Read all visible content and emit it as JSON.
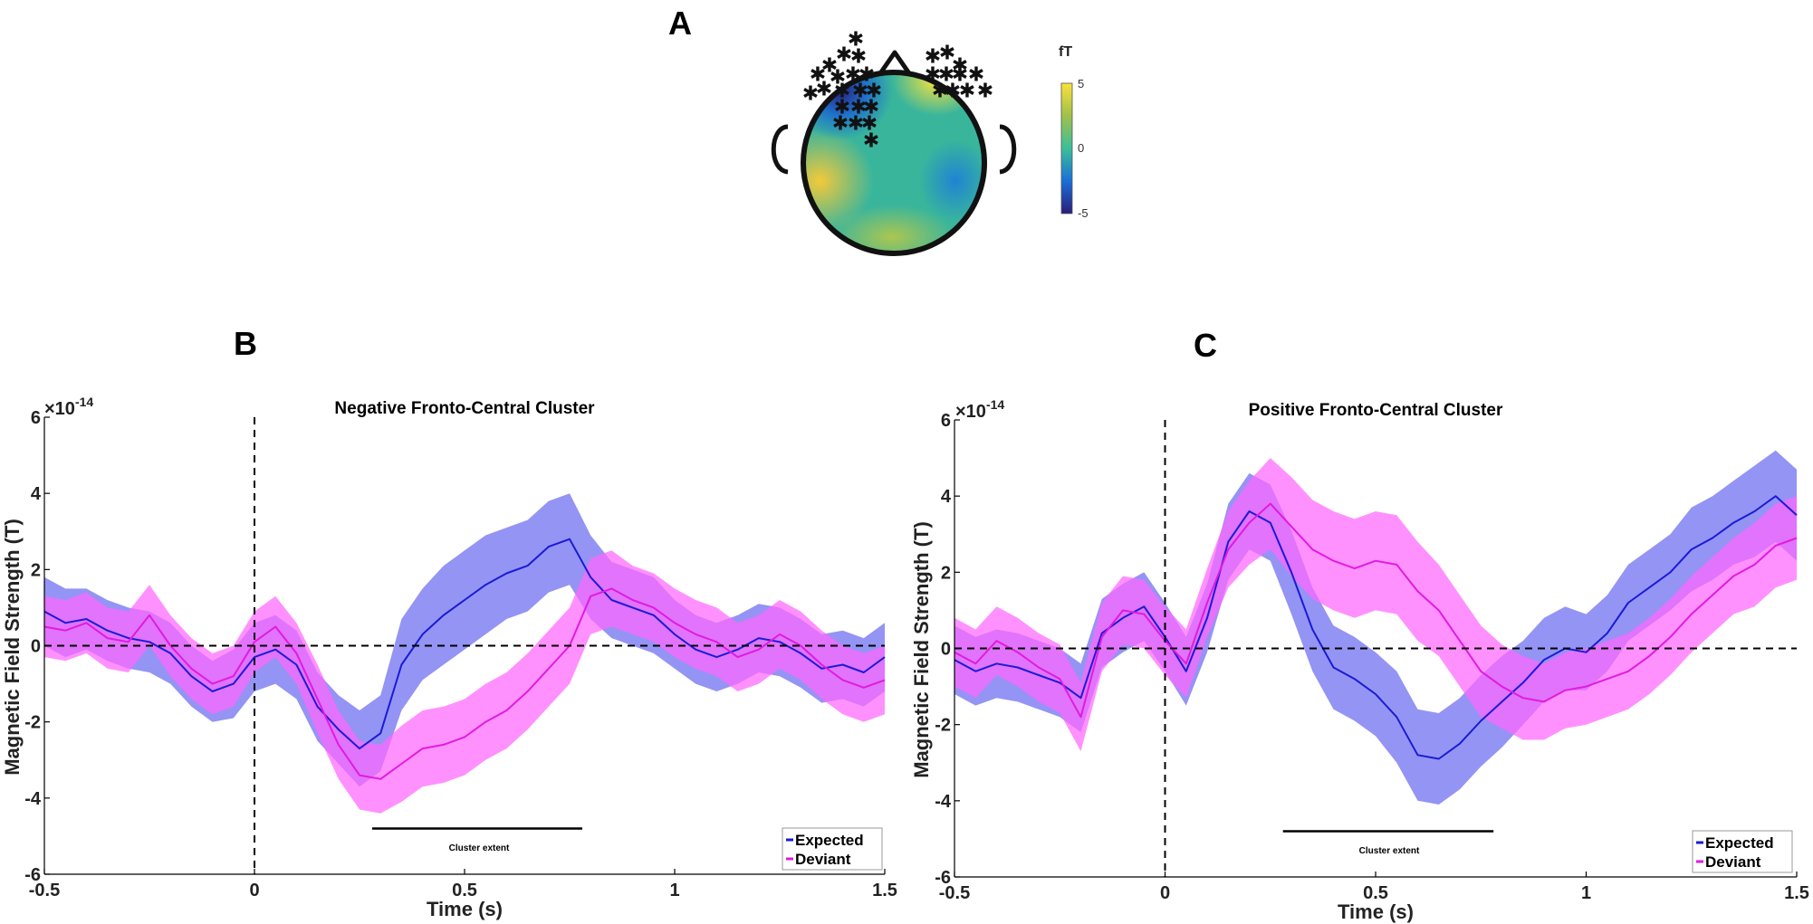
{
  "figure": {
    "panel_labels": {
      "a": "A",
      "b": "B",
      "c": "C"
    }
  },
  "colors": {
    "expected_line": "#1b1bd6",
    "expected_band": "#6b6bf0",
    "deviant_line": "#e01be0",
    "deviant_band": "#ff66ff"
  },
  "topomap": {
    "colorbar_unit": "fT",
    "colorbar_ticks": [
      "5",
      "0",
      "-5"
    ],
    "marker_symbol": "✱",
    "colormap": [
      "#2b1c7a",
      "#1a6fd8",
      "#21a3c8",
      "#3bbf9a",
      "#a0c04a",
      "#f0c83a",
      "#fbe13a"
    ]
  },
  "chart_data": [
    {
      "panel": "B",
      "type": "line",
      "title": "Negative Fronto-Central Cluster",
      "xlabel": "Time (s)",
      "ylabel": "Magnetic Field Strength (T)",
      "yscale_label": "×10",
      "yscale_exponent": "-14",
      "xlim": [
        -0.5,
        1.5
      ],
      "ylim": [
        -6,
        6
      ],
      "xticks": [
        -0.5,
        0,
        0.5,
        1,
        1.5
      ],
      "xtick_labels": [
        "-0.5",
        "0",
        "0.5",
        "1",
        "1.5"
      ],
      "yticks": [
        -6,
        -4,
        -2,
        0,
        2,
        4,
        6
      ],
      "ytick_labels": [
        "-6",
        "-4",
        "-2",
        "0",
        "2",
        "4",
        "6"
      ],
      "legend": [
        "Expected",
        "Deviant"
      ],
      "legend_position": "bottom-right",
      "cluster_extent_label": "Cluster extent",
      "cluster_extent": [
        0.28,
        0.78
      ],
      "cluster_y": -4.8,
      "x": [
        -0.5,
        -0.45,
        -0.4,
        -0.35,
        -0.3,
        -0.25,
        -0.2,
        -0.15,
        -0.1,
        -0.05,
        0,
        0.05,
        0.1,
        0.15,
        0.2,
        0.25,
        0.3,
        0.35,
        0.4,
        0.45,
        0.5,
        0.55,
        0.6,
        0.65,
        0.7,
        0.75,
        0.8,
        0.85,
        0.9,
        0.95,
        1,
        1.05,
        1.1,
        1.15,
        1.2,
        1.25,
        1.3,
        1.35,
        1.4,
        1.45,
        1.5
      ],
      "series": [
        {
          "name": "Expected",
          "values": [
            0.9,
            0.6,
            0.7,
            0.4,
            0.2,
            0.1,
            -0.2,
            -0.8,
            -1.2,
            -1.0,
            -0.3,
            -0.1,
            -0.5,
            -1.6,
            -2.2,
            -2.7,
            -2.3,
            -0.5,
            0.3,
            0.8,
            1.2,
            1.6,
            1.9,
            2.1,
            2.6,
            2.8,
            1.8,
            1.2,
            1.0,
            0.8,
            0.3,
            -0.1,
            -0.3,
            -0.1,
            0.2,
            0.1,
            -0.2,
            -0.6,
            -0.5,
            -0.7,
            -0.3
          ],
          "error": [
            0.9,
            0.9,
            0.8,
            0.8,
            0.8,
            0.8,
            0.8,
            0.8,
            0.8,
            0.9,
            0.9,
            0.9,
            0.9,
            0.9,
            0.9,
            1.0,
            1.0,
            1.2,
            1.2,
            1.3,
            1.3,
            1.3,
            1.2,
            1.2,
            1.2,
            1.2,
            1.1,
            1.0,
            1.0,
            1.0,
            0.9,
            0.9,
            0.9,
            0.9,
            0.9,
            0.9,
            0.9,
            0.9,
            0.9,
            0.9,
            0.9
          ]
        },
        {
          "name": "Deviant",
          "values": [
            0.5,
            0.4,
            0.6,
            0.2,
            0.1,
            0.8,
            0.0,
            -0.6,
            -1.0,
            -0.8,
            0.1,
            0.5,
            -0.2,
            -1.4,
            -2.6,
            -3.4,
            -3.5,
            -3.1,
            -2.7,
            -2.6,
            -2.4,
            -2.0,
            -1.7,
            -1.2,
            -0.6,
            0.0,
            1.3,
            1.5,
            1.2,
            1.0,
            0.6,
            0.3,
            0.1,
            -0.3,
            -0.1,
            0.3,
            0.0,
            -0.5,
            -0.9,
            -1.1,
            -0.9
          ],
          "error": [
            0.8,
            0.8,
            0.8,
            0.8,
            0.8,
            0.8,
            0.8,
            0.8,
            0.8,
            0.8,
            0.8,
            0.8,
            0.8,
            0.9,
            0.9,
            0.9,
            0.9,
            1.0,
            1.0,
            1.0,
            1.0,
            1.0,
            1.0,
            1.0,
            1.0,
            1.0,
            1.0,
            1.0,
            0.9,
            0.9,
            0.9,
            0.9,
            0.9,
            0.9,
            0.9,
            0.9,
            0.9,
            0.9,
            0.9,
            0.9,
            0.9
          ]
        }
      ]
    },
    {
      "panel": "C",
      "type": "line",
      "title": "Positive Fronto-Central Cluster",
      "xlabel": "Time (s)",
      "ylabel": "Magnetic Field Strength (T)",
      "yscale_label": "×10",
      "yscale_exponent": "-14",
      "xlim": [
        -0.5,
        1.5
      ],
      "ylim": [
        -6,
        6
      ],
      "xticks": [
        -0.5,
        0,
        0.5,
        1,
        1.5
      ],
      "xtick_labels": [
        "-0.5",
        "0",
        "0.5",
        "1",
        "1.5"
      ],
      "yticks": [
        -6,
        -4,
        -2,
        0,
        2,
        4,
        6
      ],
      "ytick_labels": [
        "-6",
        "-4",
        "-2",
        "0",
        "2",
        "4",
        "6"
      ],
      "legend": [
        "Expected",
        "Deviant"
      ],
      "legend_position": "bottom-right",
      "cluster_extent_label": "Cluster extent",
      "cluster_extent": [
        0.28,
        0.78
      ],
      "cluster_y": -4.8,
      "x": [
        -0.5,
        -0.45,
        -0.4,
        -0.35,
        -0.3,
        -0.25,
        -0.2,
        -0.15,
        -0.1,
        -0.05,
        0,
        0.05,
        0.1,
        0.15,
        0.2,
        0.25,
        0.3,
        0.35,
        0.4,
        0.45,
        0.5,
        0.55,
        0.6,
        0.65,
        0.7,
        0.75,
        0.8,
        0.85,
        0.9,
        0.95,
        1,
        1.05,
        1.1,
        1.15,
        1.2,
        1.25,
        1.3,
        1.35,
        1.4,
        1.45,
        1.5
      ],
      "series": [
        {
          "name": "Expected",
          "values": [
            -0.3,
            -0.6,
            -0.4,
            -0.5,
            -0.7,
            -0.9,
            -1.3,
            0.4,
            0.8,
            1.1,
            0.3,
            -0.6,
            0.8,
            2.8,
            3.6,
            3.3,
            2.0,
            0.5,
            -0.5,
            -0.8,
            -1.2,
            -1.8,
            -2.8,
            -2.9,
            -2.5,
            -1.9,
            -1.4,
            -0.9,
            -0.3,
            0.0,
            -0.1,
            0.4,
            1.2,
            1.6,
            2.0,
            2.6,
            2.9,
            3.3,
            3.6,
            4.0,
            3.5
          ],
          "error": [
            0.9,
            0.9,
            0.9,
            0.9,
            0.9,
            0.9,
            0.9,
            0.9,
            0.9,
            0.9,
            0.9,
            0.9,
            0.9,
            1.0,
            1.0,
            1.0,
            1.1,
            1.1,
            1.1,
            1.1,
            1.1,
            1.2,
            1.2,
            1.2,
            1.2,
            1.2,
            1.2,
            1.1,
            1.1,
            1.1,
            1.0,
            1.0,
            1.0,
            1.0,
            1.0,
            1.1,
            1.1,
            1.1,
            1.2,
            1.2,
            1.2
          ]
        },
        {
          "name": "Deviant",
          "values": [
            -0.1,
            -0.4,
            0.2,
            -0.1,
            -0.5,
            -0.8,
            -1.8,
            0.3,
            1.0,
            0.9,
            0.2,
            -0.4,
            1.2,
            2.6,
            3.3,
            3.8,
            3.2,
            2.6,
            2.3,
            2.1,
            2.3,
            2.2,
            1.5,
            1.0,
            0.2,
            -0.6,
            -1.0,
            -1.3,
            -1.4,
            -1.1,
            -1.0,
            -0.8,
            -0.6,
            -0.2,
            0.3,
            0.9,
            1.4,
            1.9,
            2.2,
            2.7,
            2.9
          ],
          "error": [
            0.9,
            0.9,
            0.9,
            0.9,
            0.9,
            0.9,
            0.9,
            0.9,
            0.9,
            0.9,
            0.9,
            0.9,
            0.9,
            1.0,
            1.1,
            1.2,
            1.3,
            1.3,
            1.3,
            1.3,
            1.3,
            1.3,
            1.3,
            1.2,
            1.2,
            1.2,
            1.1,
            1.1,
            1.0,
            1.0,
            1.0,
            1.0,
            1.0,
            1.0,
            1.0,
            1.0,
            1.0,
            1.0,
            1.1,
            1.1,
            1.1
          ]
        }
      ]
    }
  ]
}
